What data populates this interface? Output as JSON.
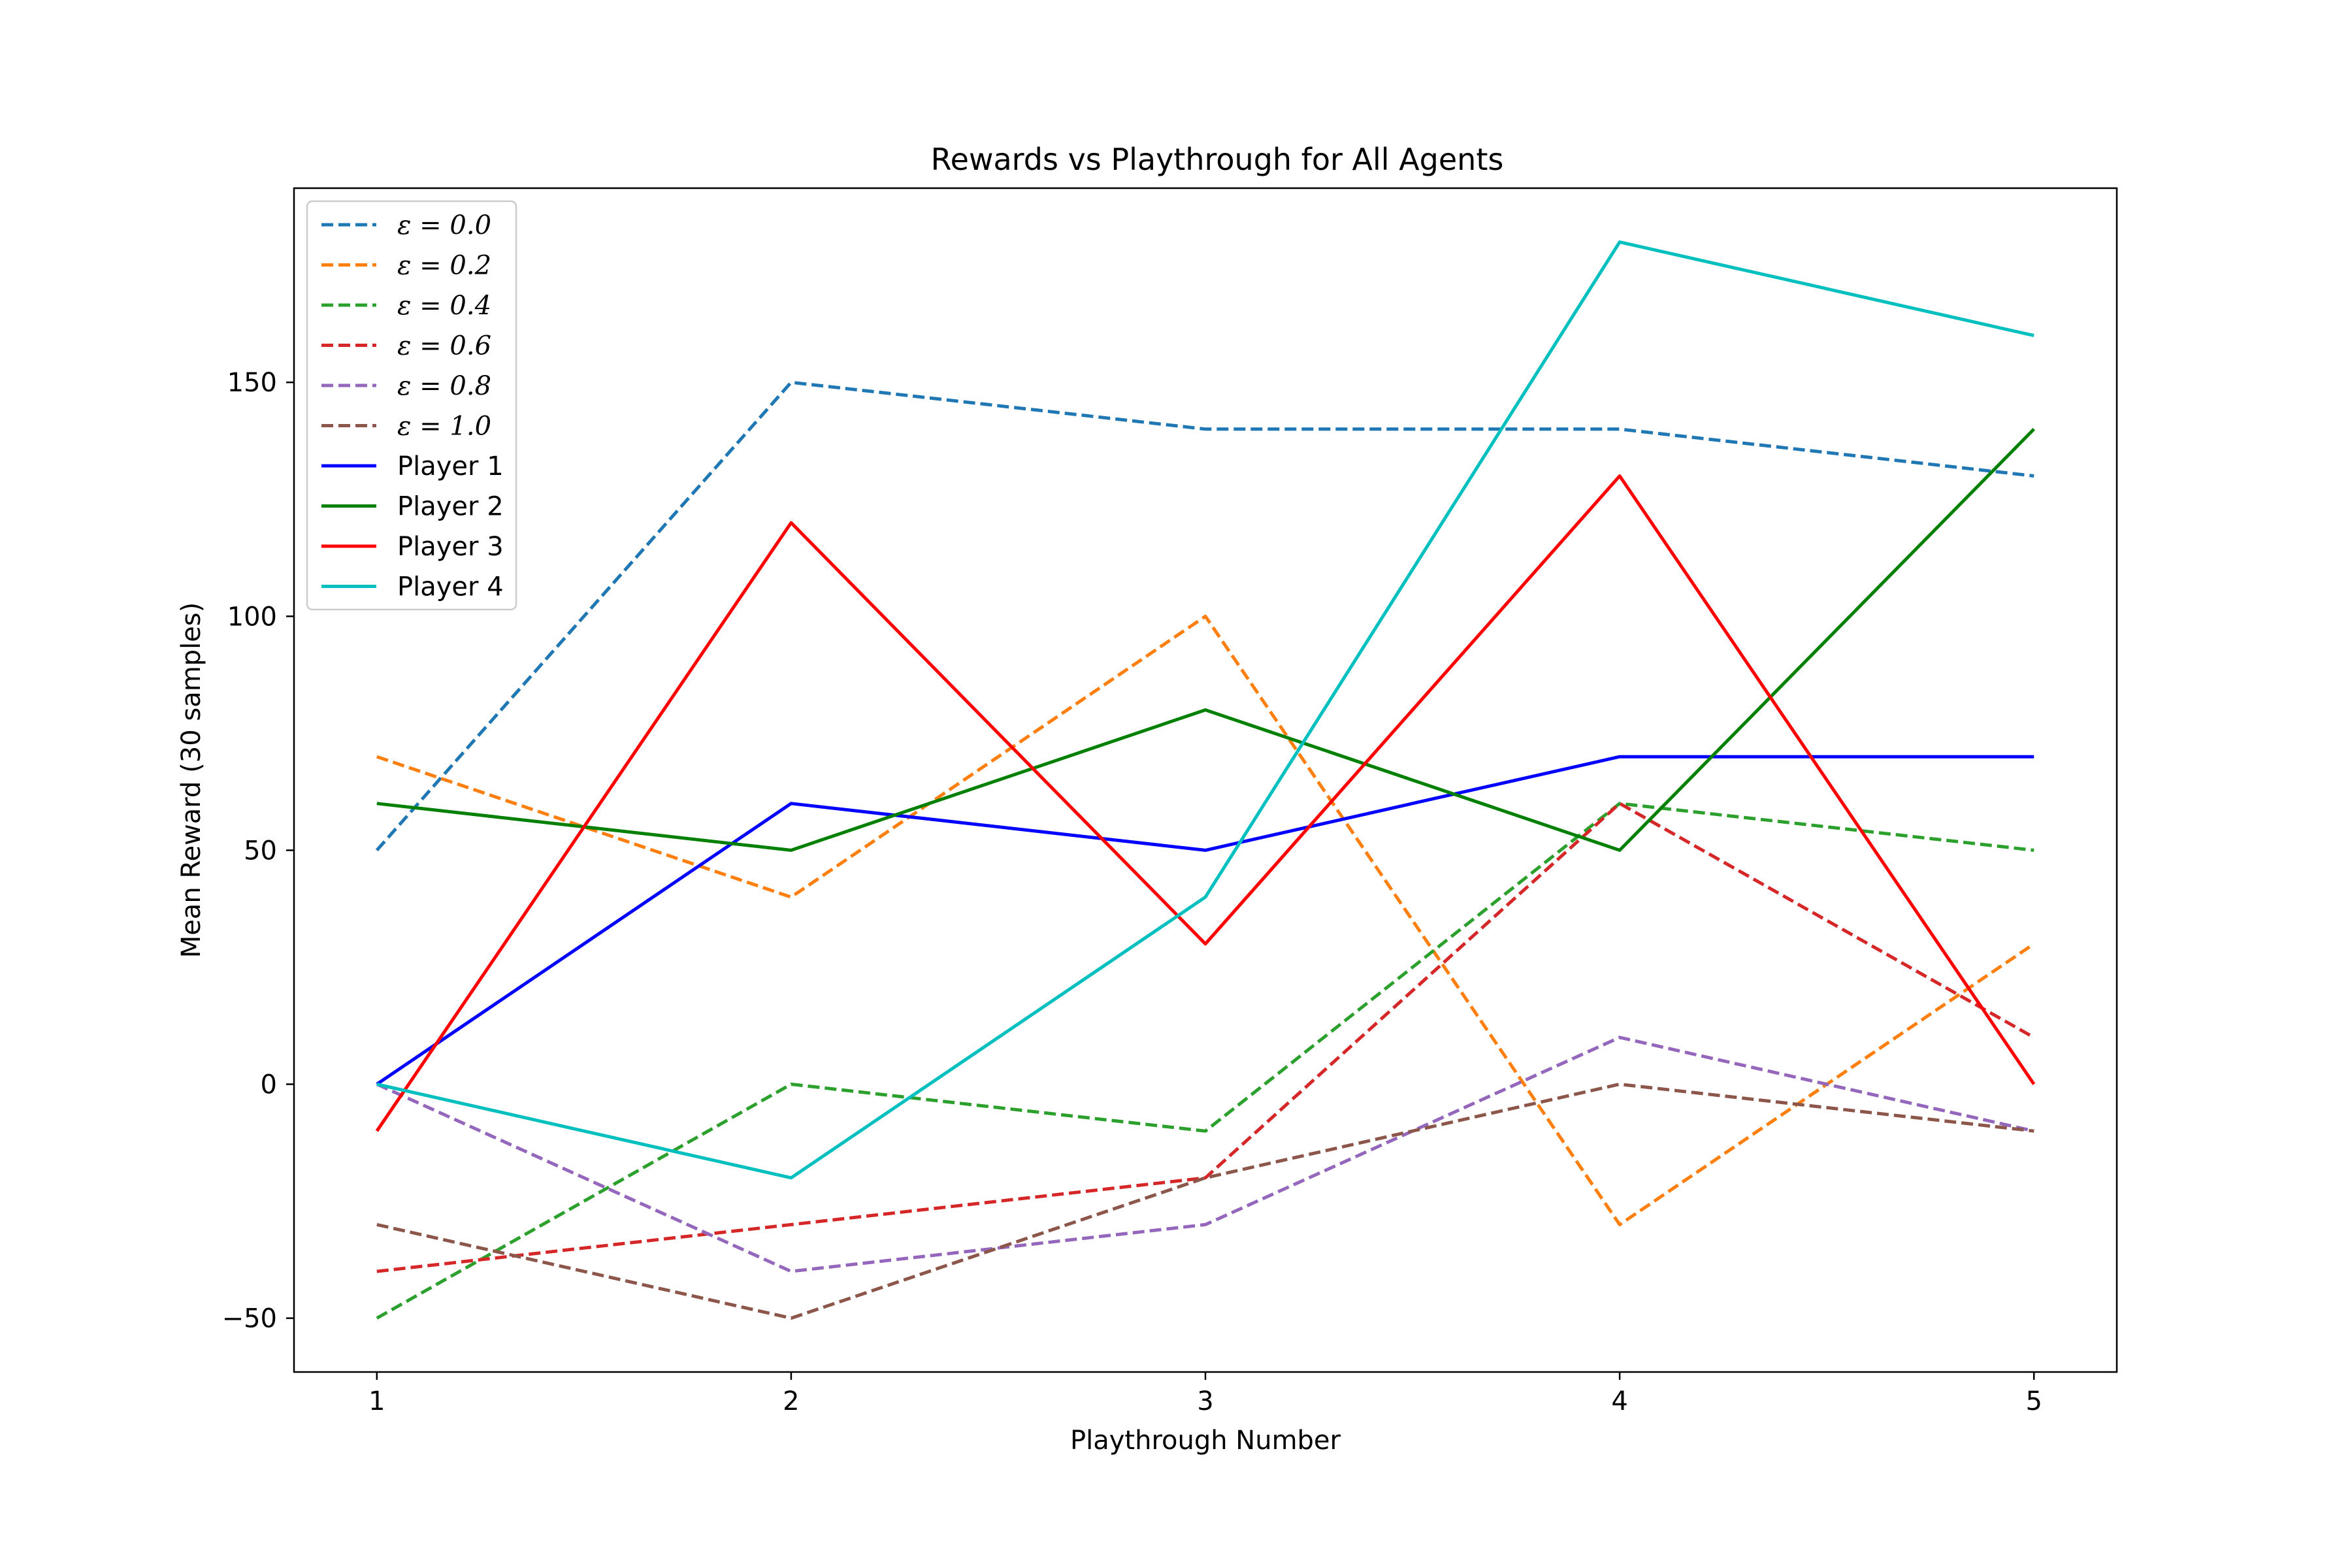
{
  "chart_data": {
    "type": "line",
    "title": "Rewards vs Playthrough for All Agents",
    "xlabel": "Playthrough Number",
    "ylabel": "Mean Reward (30 samples)",
    "x": [
      1,
      2,
      3,
      4,
      5
    ],
    "xlim": [
      0.8,
      5.2
    ],
    "ylim": [
      -61.5,
      191.5
    ],
    "xticks": [
      1,
      2,
      3,
      4,
      5
    ],
    "yticks": [
      -50,
      0,
      50,
      100,
      150
    ],
    "xtick_labels": [
      "1",
      "2",
      "3",
      "4",
      "5"
    ],
    "ytick_labels": [
      "−50",
      "0",
      "50",
      "100",
      "150"
    ],
    "grid": false,
    "legend_position": "top-left",
    "series": [
      {
        "name": "ε = 0.0",
        "values": [
          50,
          150,
          140,
          140,
          130
        ],
        "color": "#1f77b4",
        "style": "dashed"
      },
      {
        "name": "ε = 0.2",
        "values": [
          70,
          40,
          100,
          -30,
          30
        ],
        "color": "#ff7f0e",
        "style": "dashed"
      },
      {
        "name": "ε = 0.4",
        "values": [
          -50,
          0,
          -10,
          60,
          50
        ],
        "color": "#2ca02c",
        "style": "dashed"
      },
      {
        "name": "ε = 0.6",
        "values": [
          -40,
          -30,
          -20,
          60,
          10
        ],
        "color": "#d62728",
        "style": "dashed"
      },
      {
        "name": "ε = 0.8",
        "values": [
          0,
          -40,
          -30,
          10,
          -10
        ],
        "color": "#9467bd",
        "style": "dashed"
      },
      {
        "name": "ε = 1.0",
        "values": [
          -30,
          -50,
          -20,
          0,
          -10
        ],
        "color": "#8c564b",
        "style": "dashed"
      },
      {
        "name": "Player 1",
        "values": [
          0,
          60,
          50,
          70,
          70
        ],
        "color": "#0000ff",
        "style": "solid"
      },
      {
        "name": "Player 2",
        "values": [
          60,
          50,
          80,
          50,
          140
        ],
        "color": "#008000",
        "style": "solid"
      },
      {
        "name": "Player 3",
        "values": [
          -10,
          120,
          30,
          130,
          0
        ],
        "color": "#ff0000",
        "style": "solid"
      },
      {
        "name": "Player 4",
        "values": [
          0,
          -20,
          40,
          180,
          160
        ],
        "color": "#00bfbf",
        "style": "solid"
      }
    ]
  }
}
